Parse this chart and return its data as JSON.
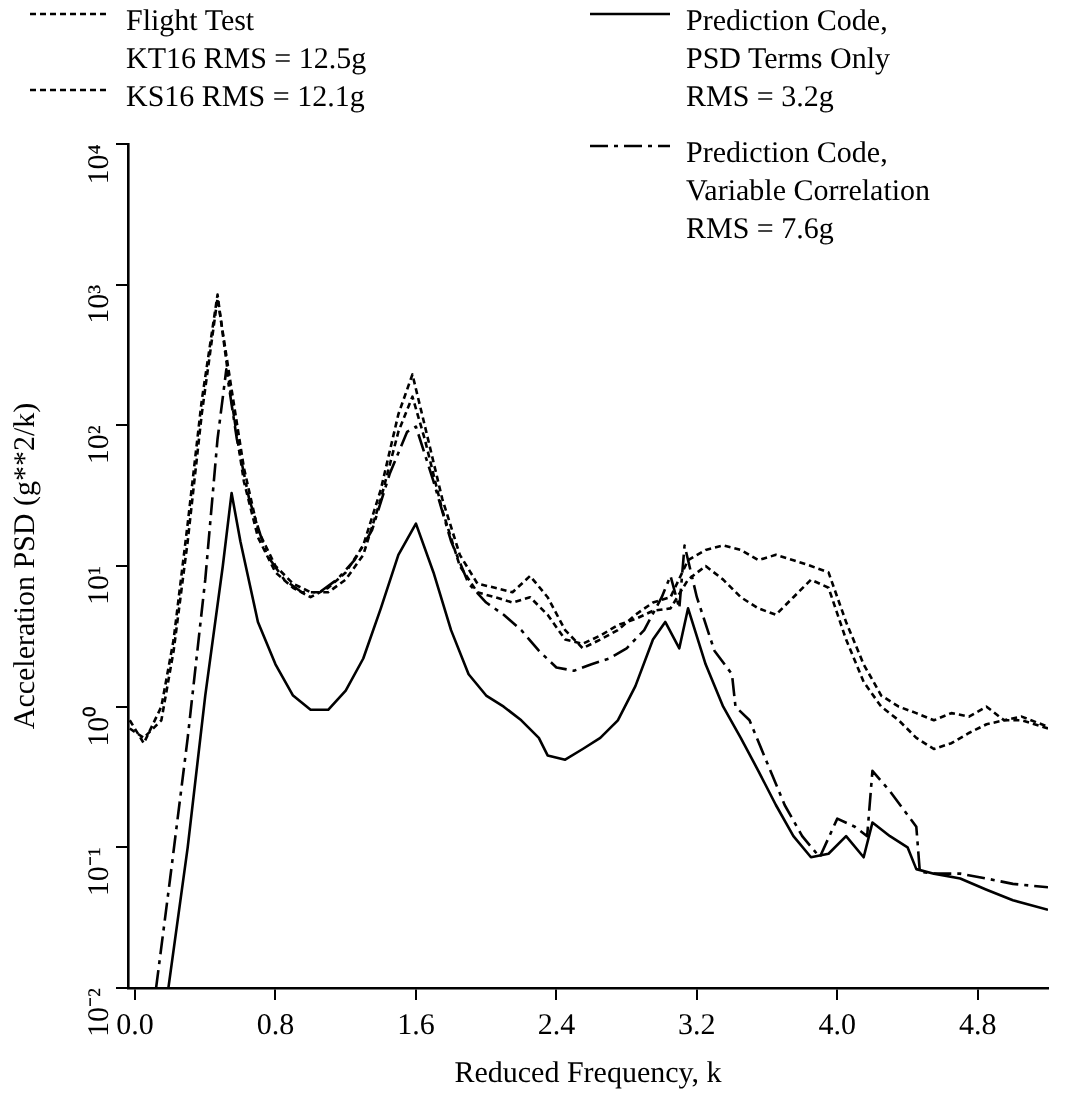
{
  "chart_data": {
    "type": "line",
    "xlabel": "Reduced Frequency, k",
    "ylabel": "Acceleration PSD (g**2/k)",
    "xlim": [
      -0.04,
      5.2
    ],
    "xticks": [
      {
        "value": 0,
        "label": "0.0"
      },
      0.8,
      1.6,
      2.4,
      3.2,
      {
        "value": 4,
        "label": "4.0"
      },
      4.8
    ],
    "ylim": [
      0.01,
      10000
    ],
    "yticks": [
      {
        "value": 0.01,
        "label": "10⁻²"
      },
      {
        "value": 0.1,
        "label": "10⁻¹"
      },
      {
        "value": 1,
        "label": "10⁰"
      },
      {
        "value": 10,
        "label": "10¹"
      },
      {
        "value": 100,
        "label": "10²"
      },
      {
        "value": 1000,
        "label": "10³"
      },
      {
        "value": 10000,
        "label": "10⁴"
      }
    ],
    "log": "y",
    "grid": false,
    "legend": "top",
    "marker": "none",
    "series": [
      {
        "name": "Flight Test\nKT16 RMS =  12.5g",
        "color": "#000000",
        "line_style": "dashed",
        "x": [
          -0.03,
          0.05,
          0.15,
          0.22,
          0.3,
          0.38,
          0.47,
          0.55,
          0.62,
          0.7,
          0.8,
          0.9,
          1.0,
          1.1,
          1.2,
          1.3,
          1.4,
          1.5,
          1.58,
          1.65,
          1.75,
          1.85,
          1.95,
          2.05,
          2.15,
          2.25,
          2.35,
          2.45,
          2.55,
          2.65,
          2.75,
          2.85,
          2.95,
          3.05,
          3.15,
          3.25,
          3.35,
          3.45,
          3.55,
          3.65,
          3.75,
          3.85,
          3.95,
          4.05,
          4.15,
          4.25,
          4.35,
          4.45,
          4.55,
          4.65,
          4.75,
          4.85,
          4.95,
          5.05,
          5.2
        ],
        "values": [
          0.8,
          0.55,
          1.0,
          3,
          20,
          150,
          850,
          150,
          40,
          16,
          9,
          7,
          6,
          7,
          9,
          14,
          35,
          120,
          230,
          100,
          30,
          12,
          7.5,
          7,
          6.5,
          8.5,
          6,
          3.5,
          2.6,
          3,
          3.5,
          4.5,
          5.5,
          6,
          11,
          13,
          14,
          13,
          11,
          12,
          11,
          10,
          9,
          4,
          2,
          1.2,
          1.0,
          0.9,
          0.8,
          0.9,
          0.85,
          1.0,
          0.8,
          0.85,
          0.72
        ]
      },
      {
        "name": "KS16 RMS =  12.1g",
        "color": "#000000",
        "line_style": "dashed",
        "x": [
          -0.03,
          0.05,
          0.15,
          0.22,
          0.3,
          0.38,
          0.47,
          0.55,
          0.62,
          0.7,
          0.8,
          0.9,
          1.0,
          1.1,
          1.2,
          1.3,
          1.4,
          1.5,
          1.58,
          1.65,
          1.75,
          1.85,
          1.95,
          2.05,
          2.15,
          2.25,
          2.35,
          2.45,
          2.55,
          2.65,
          2.75,
          2.85,
          2.95,
          3.05,
          3.15,
          3.25,
          3.35,
          3.45,
          3.55,
          3.65,
          3.75,
          3.85,
          3.95,
          4.05,
          4.15,
          4.25,
          4.35,
          4.45,
          4.55,
          4.65,
          4.75,
          4.85,
          4.95,
          5.05,
          5.2
        ],
        "values": [
          0.7,
          0.6,
          0.8,
          2.5,
          15,
          120,
          800,
          180,
          50,
          18,
          10,
          7.5,
          6.5,
          6.5,
          8,
          12,
          30,
          90,
          160,
          80,
          25,
          10,
          6.5,
          6,
          5.5,
          6,
          4.5,
          3,
          2.8,
          3.2,
          3.8,
          4.2,
          4.8,
          5,
          8,
          10,
          8,
          6,
          5,
          4.5,
          6,
          8,
          7,
          3,
          1.5,
          1.0,
          0.8,
          0.6,
          0.5,
          0.55,
          0.65,
          0.75,
          0.8,
          0.8,
          0.7
        ]
      },
      {
        "name": "Prediction Code,\nPSD Terms Only\nRMS =  3.2g",
        "color": "#000000",
        "line_style": "solid",
        "x": [
          0.19,
          0.3,
          0.4,
          0.5,
          0.55,
          0.6,
          0.7,
          0.8,
          0.9,
          1.0,
          1.1,
          1.2,
          1.3,
          1.4,
          1.5,
          1.6,
          1.7,
          1.8,
          1.9,
          2.0,
          2.1,
          2.2,
          2.3,
          2.35,
          2.45,
          2.55,
          2.65,
          2.75,
          2.85,
          2.95,
          3.02,
          3.1,
          3.15,
          3.25,
          3.35,
          3.45,
          3.55,
          3.65,
          3.75,
          3.85,
          3.95,
          4.05,
          4.15,
          4.2,
          4.3,
          4.4,
          4.45,
          4.55,
          4.7,
          4.85,
          5.0,
          5.2
        ],
        "values": [
          0.01,
          0.1,
          1.2,
          10,
          33,
          15,
          4,
          2,
          1.2,
          0.95,
          0.95,
          1.3,
          2.2,
          5,
          12,
          20,
          9,
          3.5,
          1.7,
          1.2,
          1.0,
          0.8,
          0.6,
          0.45,
          0.42,
          0.5,
          0.6,
          0.8,
          1.4,
          3,
          4,
          2.6,
          5,
          2,
          1.0,
          0.6,
          0.35,
          0.2,
          0.12,
          0.085,
          0.09,
          0.12,
          0.085,
          0.15,
          0.12,
          0.1,
          0.07,
          0.065,
          0.06,
          0.05,
          0.042,
          0.036
        ]
      },
      {
        "name": "Prediction Code,\nVariable Correlation\nRMS =  7.6g",
        "color": "#000000",
        "line_style": "dashdot",
        "x": [
          0.12,
          0.2,
          0.3,
          0.4,
          0.47,
          0.52,
          0.58,
          0.65,
          0.75,
          0.85,
          0.95,
          1.05,
          1.15,
          1.25,
          1.35,
          1.45,
          1.55,
          1.6,
          1.7,
          1.8,
          1.9,
          2.0,
          2.1,
          2.2,
          2.3,
          2.4,
          2.5,
          2.6,
          2.7,
          2.8,
          2.9,
          3.0,
          3.05,
          3.1,
          3.13,
          3.2,
          3.3,
          3.4,
          3.42,
          3.5,
          3.6,
          3.7,
          3.8,
          3.9,
          4.0,
          4.1,
          4.17,
          4.2,
          4.3,
          4.45,
          4.47,
          4.55,
          4.7,
          4.85,
          5.0,
          5.2
        ],
        "values": [
          0.01,
          0.06,
          0.6,
          8,
          80,
          250,
          80,
          30,
          12,
          8,
          6.5,
          6.5,
          8,
          11,
          18,
          45,
          90,
          98,
          40,
          15,
          7.5,
          5.5,
          4.5,
          3.5,
          2.5,
          1.9,
          1.8,
          2.0,
          2.2,
          2.6,
          3.5,
          6,
          8.5,
          5,
          14,
          6,
          2.5,
          1.7,
          1.0,
          0.8,
          0.4,
          0.2,
          0.12,
          0.085,
          0.16,
          0.14,
          0.12,
          0.35,
          0.25,
          0.14,
          0.067,
          0.065,
          0.065,
          0.06,
          0.055,
          0.052
        ]
      }
    ]
  }
}
